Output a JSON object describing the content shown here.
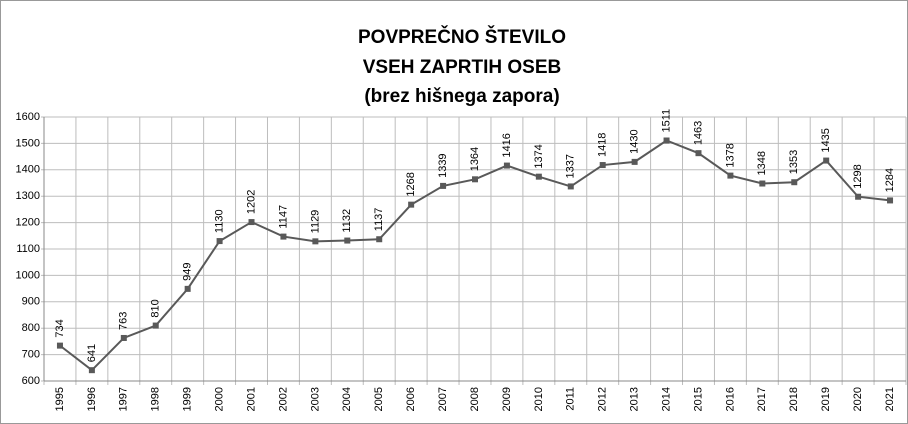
{
  "chart_data": {
    "type": "line",
    "title": [
      "POVPREČNO  ŠTEVILO",
      "VSEH ZAPRTIH OSEB",
      "(brez hišnega zapora)"
    ],
    "categories": [
      "1995",
      "1996",
      "1997",
      "1998",
      "1999",
      "2000",
      "2001",
      "2002",
      "2003",
      "2004",
      "2005",
      "2006",
      "2007",
      "2008",
      "2009",
      "2010",
      "2011",
      "2012",
      "2013",
      "2014",
      "2015",
      "2016",
      "2017",
      "2018",
      "2019",
      "2020",
      "2021"
    ],
    "series": [
      {
        "name": "Povprečno število",
        "color": "#595959",
        "values": [
          734,
          641,
          763,
          810,
          949,
          1130,
          1202,
          1147,
          1129,
          1132,
          1137,
          1268,
          1339,
          1364,
          1416,
          1374,
          1337,
          1418,
          1430,
          1511,
          1463,
          1378,
          1348,
          1353,
          1435,
          1298,
          1284
        ]
      }
    ],
    "ylim": [
      600,
      1600
    ],
    "yticks": [
      600,
      700,
      800,
      900,
      1000,
      1100,
      1200,
      1300,
      1400,
      1500,
      1600
    ],
    "grid": true
  }
}
